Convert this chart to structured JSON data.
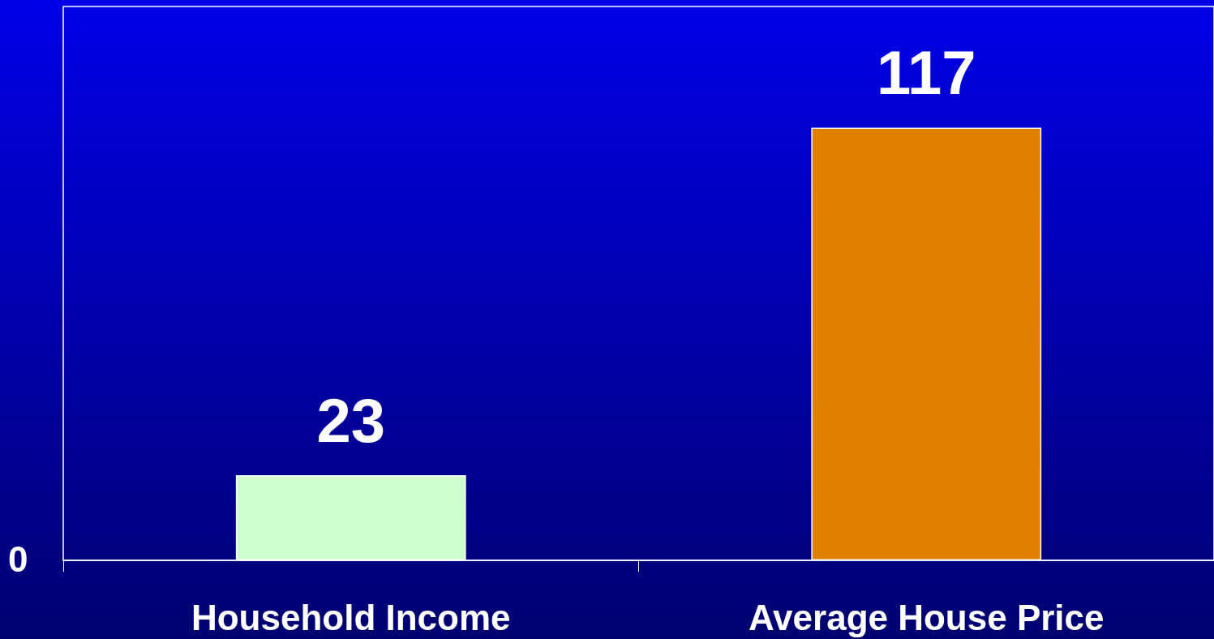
{
  "chart_data": {
    "type": "bar",
    "categories": [
      "Household Income",
      "Average House Price"
    ],
    "values": [
      23,
      117
    ],
    "colors": [
      "#ccffcc",
      "#e08000"
    ],
    "data_labels": true,
    "annotations": [
      "0"
    ]
  }
}
